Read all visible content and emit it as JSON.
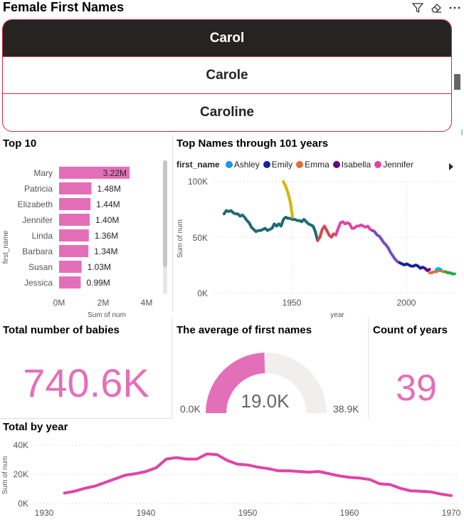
{
  "header": {
    "slicer_title": "Female First Names",
    "icons": [
      "filter-icon",
      "eraser-icon",
      "more-options-icon"
    ]
  },
  "slicer": {
    "items": [
      {
        "label": "Carol",
        "selected": true
      },
      {
        "label": "Carole",
        "selected": false
      },
      {
        "label": "Caroline",
        "selected": false
      }
    ]
  },
  "top10": {
    "title": "Top 10",
    "ylabel": "first_name",
    "xlabel": "Sum of num",
    "x_ticks": [
      "0M",
      "2M",
      "4M"
    ]
  },
  "linechart": {
    "title": "Top Names through 101 years",
    "legend_label": "first_name",
    "legend": [
      {
        "name": "Ashley",
        "color": "#1e90ff"
      },
      {
        "name": "Emily",
        "color": "#12239e"
      },
      {
        "name": "Emma",
        "color": "#e66c37"
      },
      {
        "name": "Isabella",
        "color": "#6b007b"
      },
      {
        "name": "Jennifer",
        "color": "#e044a7"
      }
    ],
    "ylabel": "Sum of num",
    "xlabel": "year",
    "y_ticks": [
      "100K",
      "50K",
      "0K"
    ],
    "x_ticks": [
      "1950",
      "2000"
    ]
  },
  "kpi_total": {
    "title": "Total number of babies",
    "value": "740.6K"
  },
  "gauge": {
    "title": "The average of first names",
    "value": "19.0K",
    "min": "0.0K",
    "max": "38.9K",
    "fill_fraction": 0.49,
    "color": "#e46fb9"
  },
  "kpi_years": {
    "title": "Count of years",
    "value": "39"
  },
  "area": {
    "title": "Total by year",
    "ylabel": "Sum of num",
    "y_ticks": [
      "40K",
      "20K",
      "0K"
    ],
    "x_ticks": [
      "1930",
      "1940",
      "1950",
      "1960",
      "1970"
    ]
  },
  "chart_data": [
    {
      "type": "bar",
      "title": "Top 10",
      "xlabel": "Sum of num",
      "ylabel": "first_name",
      "xlim": [
        0,
        4800000
      ],
      "categories": [
        "Mary",
        "Patricia",
        "Elizabeth",
        "Jennifer",
        "Linda",
        "Barbara",
        "Susan",
        "Jessica"
      ],
      "values": [
        3220000,
        1480000,
        1440000,
        1400000,
        1360000,
        1340000,
        1030000,
        990000
      ],
      "labels": [
        "3.22M",
        "1.48M",
        "1.44M",
        "1.40M",
        "1.36M",
        "1.34M",
        "1.03M",
        "0.99M"
      ],
      "color": "#e46fb9"
    },
    {
      "type": "line",
      "title": "Top Names through 101 years",
      "xlabel": "year",
      "ylabel": "Sum of num",
      "xlim": [
        1916,
        2022
      ],
      "ylim": [
        0,
        100000
      ],
      "series": [
        {
          "color": "#1f6b72",
          "x": [
            1920,
            1921,
            1922,
            1923,
            1924,
            1925,
            1926,
            1927,
            1928,
            1929,
            1930,
            1931,
            1932,
            1933,
            1934,
            1935,
            1936,
            1937,
            1938,
            1939,
            1940,
            1941,
            1942,
            1943,
            1944,
            1945,
            1946,
            1947,
            1948,
            1949,
            1950,
            1951,
            1952,
            1953,
            1954,
            1955,
            1956,
            1957,
            1958,
            1959,
            1960,
            1961
          ],
          "y": [
            71000,
            74000,
            73000,
            74000,
            72000,
            71000,
            71000,
            69000,
            70000,
            68000,
            65000,
            63000,
            59000,
            57000,
            55000,
            56000,
            56000,
            57000,
            58000,
            56000,
            57000,
            58000,
            62000,
            60000,
            62000,
            60000,
            66000,
            68000,
            67000,
            67000,
            66000,
            66000,
            65000,
            65000,
            64000,
            66000,
            64000,
            62000,
            61000,
            60000,
            55000,
            47000
          ]
        },
        {
          "color": "#d9b300",
          "x": [
            1946,
            1947,
            1948,
            1949,
            1950
          ],
          "y": [
            100000,
            96000,
            90000,
            82000,
            68000
          ]
        },
        {
          "color": "#d64550",
          "x": [
            1961,
            1962,
            1963,
            1964,
            1965,
            1966,
            1967,
            1968,
            1969
          ],
          "y": [
            47000,
            50000,
            57000,
            60000,
            56000,
            52000,
            50000,
            53000,
            52000
          ]
        },
        {
          "color": "#e044a7",
          "x": [
            1969,
            1970,
            1971,
            1972,
            1973,
            1974,
            1975,
            1976,
            1977,
            1978,
            1979,
            1980,
            1981,
            1982,
            1983,
            1984,
            1985
          ],
          "y": [
            52000,
            58000,
            63000,
            64000,
            62000,
            63000,
            62000,
            58000,
            58000,
            60000,
            60000,
            61000,
            60000,
            59000,
            60000,
            57000,
            56000
          ]
        },
        {
          "color": "#744ec2",
          "x": [
            1985,
            1986,
            1987,
            1988,
            1989,
            1990,
            1991,
            1992,
            1993,
            1994,
            1995,
            1996,
            1997
          ],
          "y": [
            56000,
            55000,
            52000,
            51000,
            48000,
            45000,
            43000,
            40000,
            36000,
            33000,
            30000,
            28000,
            27000
          ]
        },
        {
          "color": "#12239e",
          "x": [
            1997,
            1998,
            1999,
            2000,
            2001,
            2002,
            2003,
            2004,
            2005,
            2006,
            2007,
            2008
          ],
          "y": [
            27000,
            26000,
            25000,
            26000,
            25000,
            24000,
            24000,
            25000,
            24000,
            22000,
            23000,
            22000
          ]
        },
        {
          "color": "#6b007b",
          "x": [
            2008,
            2009,
            2010
          ],
          "y": [
            22000,
            20000,
            21000
          ]
        },
        {
          "color": "#e66c37",
          "x": [
            2010,
            2011,
            2012,
            2013,
            2014,
            2015,
            2016,
            2017,
            2018,
            2019
          ],
          "y": [
            18000,
            18000,
            19000,
            19000,
            20000,
            20000,
            19000,
            19000,
            18000,
            18000
          ]
        },
        {
          "color": "#1ab0d6",
          "x": [
            2013,
            2014,
            2015
          ],
          "y": [
            21000,
            22000,
            21000
          ]
        },
        {
          "color": "#1aab40",
          "x": [
            2017,
            2018,
            2019,
            2020,
            2021
          ],
          "y": [
            19000,
            18000,
            18000,
            17000,
            17000
          ]
        }
      ]
    },
    {
      "type": "area",
      "title": "Total by year",
      "ylabel": "Sum of num",
      "xlim": [
        1930,
        1970
      ],
      "ylim": [
        0,
        40000
      ],
      "x": [
        1932,
        1933,
        1934,
        1935,
        1936,
        1937,
        1938,
        1939,
        1940,
        1941,
        1942,
        1943,
        1944,
        1945,
        1946,
        1947,
        1948,
        1949,
        1950,
        1951,
        1952,
        1953,
        1954,
        1955,
        1956,
        1957,
        1958,
        1959,
        1960,
        1961,
        1962,
        1963,
        1964,
        1965,
        1966,
        1967,
        1968,
        1969,
        1970
      ],
      "values": [
        7200,
        8500,
        10500,
        12000,
        14500,
        17000,
        19500,
        20500,
        22000,
        24500,
        30500,
        31500,
        30500,
        30500,
        34000,
        33500,
        29500,
        27000,
        26500,
        25000,
        24000,
        22500,
        22500,
        22000,
        21500,
        22000,
        20500,
        19000,
        18000,
        17500,
        16500,
        13500,
        13000,
        10500,
        8800,
        8500,
        8000,
        6500,
        5500
      ],
      "color": "#e044a7"
    }
  ]
}
